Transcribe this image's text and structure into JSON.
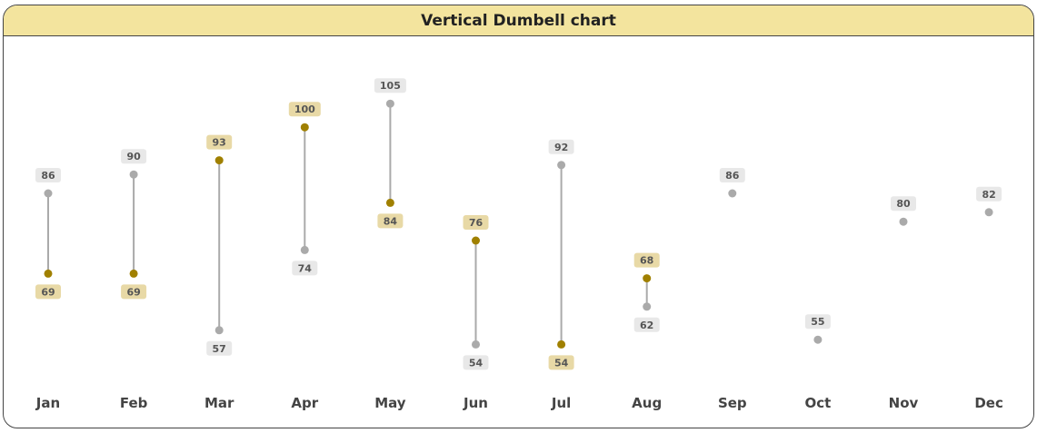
{
  "chart_data": {
    "type": "dumbbell",
    "orientation": "vertical",
    "title": "Vertical Dumbell chart",
    "categories": [
      "Jan",
      "Feb",
      "Mar",
      "Apr",
      "May",
      "Jun",
      "Jul",
      "Aug",
      "Sep",
      "Oct",
      "Nov",
      "Dec"
    ],
    "series": [
      {
        "values": [
          86,
          90,
          57,
          74,
          105,
          54,
          92,
          62,
          86,
          55,
          80,
          82
        ],
        "color": "#aaaaaa",
        "label_bg": "#e8e8e8"
      },
      {
        "values": [
          69,
          69,
          93,
          100,
          84,
          76,
          54,
          68,
          null,
          null,
          null,
          null
        ],
        "color": "#a08000",
        "label_bg": "#e8d9a6"
      }
    ],
    "connector_color": "#aaaaaa",
    "title_bar_color": "#f3e49e",
    "ylim": [
      40,
      115
    ],
    "grid": false,
    "legend": "none"
  }
}
